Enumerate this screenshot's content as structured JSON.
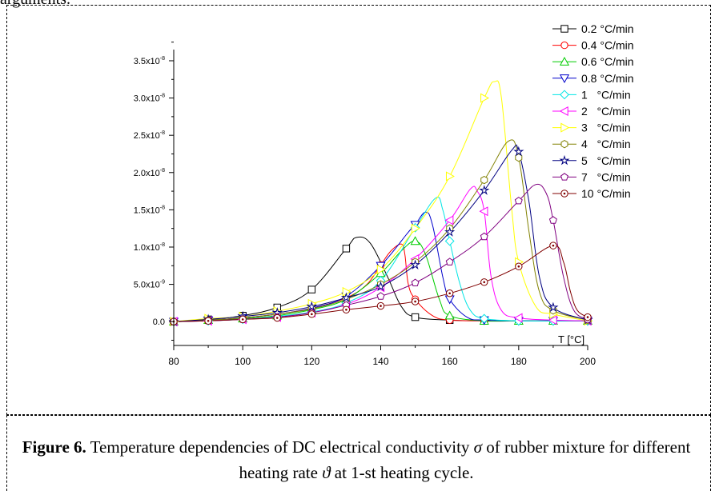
{
  "top_text": "arguments.",
  "caption": {
    "label": "Figure 6.",
    "text1": " Temperature dependencies of DC electrical conductivity ",
    "sym1": "σ",
    "text2": " of rubber mixture for different heating rate ",
    "sym2": "ϑ",
    "text3": " at 1-st heating cycle."
  },
  "chart_data": {
    "type": "line",
    "xlabel": "T [°C]",
    "ylabel": "",
    "xlim": [
      80,
      200
    ],
    "ylim": [
      -3.2e-09,
      3.65e-08
    ],
    "x_ticks": [
      80,
      100,
      120,
      140,
      160,
      180,
      200
    ],
    "y_ticks": [
      {
        "value": 0,
        "label": "0.0",
        "exp": ""
      },
      {
        "value": 5e-09,
        "label": "5.0x10",
        "exp": "-9"
      },
      {
        "value": 1e-08,
        "label": "1.0x10",
        "exp": "-8"
      },
      {
        "value": 1.5e-08,
        "label": "1.5x10",
        "exp": "-8"
      },
      {
        "value": 2e-08,
        "label": "2.0x10",
        "exp": "-8"
      },
      {
        "value": 2.5e-08,
        "label": "2.5x10",
        "exp": "-8"
      },
      {
        "value": 3e-08,
        "label": "3.0x10",
        "exp": "-8"
      },
      {
        "value": 3.5e-08,
        "label": "3.5x10",
        "exp": "-8"
      }
    ],
    "legend_position": "top-right",
    "series": [
      {
        "name": "0.2 °C/min",
        "color": "#000000",
        "marker": "square",
        "x": [
          80,
          90,
          100,
          110,
          120,
          130,
          133,
          137,
          142,
          146,
          150,
          160,
          170,
          180,
          190,
          200
        ],
        "y": [
          0,
          3e-10,
          8e-10,
          1.9e-09,
          4.3e-09,
          9.8e-09,
          1.13e-08,
          1.05e-08,
          6e-09,
          2e-09,
          6e-10,
          2e-10,
          1e-10,
          1e-10,
          1e-10,
          1e-10
        ],
        "mx": [
          80,
          90,
          100,
          110,
          120,
          130,
          150,
          160,
          170,
          180,
          190,
          200
        ],
        "my": [
          0,
          3e-10,
          8e-10,
          1.9e-09,
          4.3e-09,
          9.8e-09,
          6e-10,
          2e-10,
          1e-10,
          1e-10,
          1e-10,
          1e-10
        ]
      },
      {
        "name": "0.4 °C/min",
        "color": "#ff0000",
        "marker": "circle",
        "x": [
          80,
          90,
          100,
          110,
          120,
          130,
          136,
          140,
          143,
          146,
          147,
          148,
          150,
          155,
          160,
          170,
          180,
          190,
          200
        ],
        "y": [
          0,
          2e-10,
          5e-10,
          1e-09,
          1.8e-09,
          3.2e-09,
          5e-09,
          7.6e-09,
          9.5e-09,
          1.04e-08,
          9e-09,
          5e-09,
          3e-09,
          8e-10,
          2e-10,
          1e-10,
          1e-10,
          1e-10,
          1e-10
        ],
        "mx": [
          80,
          90,
          100,
          110,
          120,
          130,
          140,
          150,
          160,
          170,
          180,
          190,
          200
        ],
        "my": [
          0,
          2e-10,
          5e-10,
          1e-09,
          1.8e-09,
          3.2e-09,
          7.6e-09,
          3e-09,
          2e-10,
          1e-10,
          1e-10,
          1e-10,
          1e-10
        ]
      },
      {
        "name": "0.6 °C/min",
        "color": "#00cc00",
        "marker": "triangle-up",
        "x": [
          80,
          90,
          100,
          110,
          120,
          130,
          140,
          146,
          150,
          153,
          157,
          160,
          170,
          180,
          190,
          200
        ],
        "y": [
          0,
          2e-10,
          4e-10,
          8e-10,
          1.6e-09,
          3e-09,
          6.5e-09,
          9.5e-09,
          1.08e-08,
          9e-09,
          3e-09,
          8e-10,
          1e-10,
          1e-10,
          1e-10,
          1e-10
        ],
        "mx": [
          80,
          90,
          100,
          110,
          120,
          130,
          140,
          150,
          160,
          170,
          180,
          190,
          200
        ],
        "my": [
          0,
          2e-10,
          4e-10,
          8e-10,
          1.6e-09,
          3e-09,
          6.5e-09,
          1.08e-08,
          8e-10,
          1e-10,
          1e-10,
          1e-10,
          1e-10
        ]
      },
      {
        "name": "0.8 °C/min",
        "color": "#0000cc",
        "marker": "triangle-down",
        "x": [
          80,
          90,
          100,
          110,
          120,
          130,
          140,
          148,
          150,
          153,
          155,
          158,
          160,
          165,
          170,
          180,
          190,
          200
        ],
        "y": [
          0,
          2e-10,
          5e-10,
          1e-09,
          1.8e-09,
          3.4e-09,
          7.5e-09,
          1.2e-08,
          1.3e-08,
          1.47e-08,
          1.3e-08,
          6e-09,
          3e-09,
          6e-10,
          2e-10,
          1e-10,
          1e-10,
          1e-10
        ],
        "mx": [
          80,
          90,
          100,
          110,
          120,
          130,
          140,
          150,
          160,
          170,
          180,
          190,
          200
        ],
        "my": [
          0,
          2e-10,
          5e-10,
          1e-09,
          1.8e-09,
          3.4e-09,
          7.5e-09,
          1.3e-08,
          3e-09,
          2e-10,
          1e-10,
          1e-10,
          1e-10
        ]
      },
      {
        "name": "1   °C/min",
        "color": "#00e5e5",
        "marker": "diamond",
        "x": [
          80,
          90,
          100,
          110,
          120,
          130,
          140,
          150,
          156,
          158,
          160,
          163,
          166,
          170,
          180,
          190,
          200
        ],
        "y": [
          0,
          1e-10,
          3e-10,
          7e-10,
          1.3e-09,
          2.5e-09,
          5.5e-09,
          1.26e-08,
          1.66e-08,
          1.5e-08,
          1.08e-08,
          5e-09,
          1.5e-09,
          4e-10,
          1e-10,
          1e-10,
          1e-10
        ],
        "mx": [
          80,
          90,
          100,
          110,
          120,
          130,
          140,
          150,
          160,
          170,
          180,
          190,
          200
        ],
        "my": [
          0,
          1e-10,
          3e-10,
          7e-10,
          1.3e-09,
          2.5e-09,
          5.5e-09,
          1.26e-08,
          1.08e-08,
          4e-10,
          1e-10,
          1e-10,
          1e-10
        ]
      },
      {
        "name": "2   °C/min",
        "color": "#ff00ff",
        "marker": "triangle-left",
        "x": [
          80,
          90,
          100,
          110,
          120,
          130,
          140,
          150,
          160,
          166,
          168,
          170,
          172,
          175,
          180,
          190,
          200
        ],
        "y": [
          0,
          1e-10,
          3e-10,
          6e-10,
          1.2e-09,
          2.3e-09,
          4.6e-09,
          8.4e-09,
          1.36e-08,
          1.78e-08,
          1.75e-08,
          1.48e-08,
          6e-09,
          1.5e-09,
          5e-10,
          2e-10,
          1e-10
        ],
        "mx": [
          80,
          90,
          100,
          110,
          120,
          130,
          140,
          150,
          160,
          170,
          180,
          190,
          200
        ],
        "my": [
          0,
          1e-10,
          3e-10,
          6e-10,
          1.2e-09,
          2.3e-09,
          4.6e-09,
          8.4e-09,
          1.36e-08,
          1.48e-08,
          5e-10,
          2e-10,
          1e-10
        ]
      },
      {
        "name": "3   °C/min",
        "color": "#ffff00",
        "marker": "triangle-right",
        "x": [
          80,
          90,
          100,
          110,
          120,
          130,
          140,
          150,
          160,
          170,
          173,
          175,
          178,
          180,
          185,
          190,
          200
        ],
        "y": [
          0,
          4e-10,
          7e-10,
          1.4e-09,
          2.4e-09,
          4e-09,
          7e-09,
          1.25e-08,
          1.95e-08,
          3e-08,
          3.22e-08,
          3e-08,
          1.5e-08,
          8e-09,
          2e-09,
          1e-09,
          1e-10
        ],
        "mx": [
          80,
          90,
          100,
          110,
          120,
          130,
          140,
          150,
          160,
          170,
          180,
          190,
          200
        ],
        "my": [
          0,
          4e-10,
          7e-10,
          1.4e-09,
          2.4e-09,
          4e-09,
          7e-09,
          1.25e-08,
          1.95e-08,
          3e-08,
          8e-09,
          1e-09,
          1e-10
        ]
      },
      {
        "name": "4   °C/min",
        "color": "#808000",
        "marker": "hexagon",
        "x": [
          80,
          90,
          100,
          110,
          120,
          130,
          140,
          150,
          160,
          170,
          177,
          180,
          183,
          186,
          190,
          200
        ],
        "y": [
          0,
          2e-10,
          5e-10,
          1e-09,
          1.7e-09,
          3e-09,
          5e-09,
          8e-09,
          1.25e-08,
          1.9e-08,
          2.42e-08,
          2.2e-08,
          1.2e-08,
          4e-09,
          1.5e-09,
          2e-10
        ],
        "mx": [
          80,
          90,
          100,
          110,
          120,
          130,
          140,
          150,
          160,
          170,
          180,
          190,
          200
        ],
        "my": [
          0,
          2e-10,
          5e-10,
          1e-09,
          1.7e-09,
          3e-09,
          5e-09,
          8e-09,
          1.25e-08,
          1.9e-08,
          2.2e-08,
          1.5e-09,
          2e-10
        ]
      },
      {
        "name": "5   °C/min",
        "color": "#000080",
        "marker": "star",
        "x": [
          80,
          90,
          100,
          110,
          120,
          130,
          140,
          150,
          160,
          170,
          178,
          180,
          183,
          186,
          190,
          200
        ],
        "y": [
          0,
          3e-10,
          7e-10,
          1.2e-09,
          2e-09,
          3.2e-09,
          4.7e-09,
          7.6e-09,
          1.2e-08,
          1.76e-08,
          2.3e-08,
          2.28e-08,
          1.6e-08,
          6e-09,
          1.9e-09,
          2e-10
        ],
        "mx": [
          80,
          90,
          100,
          110,
          120,
          130,
          140,
          150,
          160,
          170,
          180,
          190,
          200
        ],
        "my": [
          0,
          3e-10,
          7e-10,
          1.2e-09,
          2e-09,
          3.2e-09,
          4.7e-09,
          7.6e-09,
          1.2e-08,
          1.76e-08,
          2.28e-08,
          1.9e-09,
          2e-10
        ]
      },
      {
        "name": "7   °C/min",
        "color": "#800080",
        "marker": "pentagon",
        "x": [
          80,
          90,
          100,
          110,
          120,
          130,
          140,
          150,
          160,
          170,
          180,
          185,
          188,
          190,
          193,
          196,
          200
        ],
        "y": [
          0,
          1e-10,
          3e-10,
          6e-10,
          1.2e-09,
          2.2e-09,
          3.4e-09,
          5.2e-09,
          8e-09,
          1.14e-08,
          1.62e-08,
          1.84e-08,
          1.72e-08,
          1.36e-08,
          6e-09,
          1.5e-09,
          3e-10
        ],
        "mx": [
          80,
          90,
          100,
          110,
          120,
          130,
          140,
          150,
          160,
          170,
          180,
          190,
          200
        ],
        "my": [
          0,
          1e-10,
          3e-10,
          6e-10,
          1.2e-09,
          2.2e-09,
          3.4e-09,
          5.2e-09,
          8e-09,
          1.14e-08,
          1.62e-08,
          1.36e-08,
          3e-10
        ]
      },
      {
        "name": "10 °C/min",
        "color": "#800000",
        "marker": "circle-dot",
        "x": [
          80,
          90,
          100,
          110,
          120,
          130,
          140,
          150,
          160,
          170,
          180,
          190,
          193,
          195,
          197,
          200
        ],
        "y": [
          0,
          1e-10,
          3e-10,
          5e-10,
          1e-09,
          1.6e-09,
          2.1e-09,
          2.7e-09,
          3.8e-09,
          5.3e-09,
          7.4e-09,
          1.02e-08,
          8e-09,
          4e-09,
          1.5e-09,
          6e-10
        ],
        "mx": [
          80,
          90,
          100,
          110,
          120,
          130,
          140,
          150,
          160,
          170,
          180,
          190,
          200
        ],
        "my": [
          0,
          1e-10,
          3e-10,
          5e-10,
          1e-09,
          1.6e-09,
          2.1e-09,
          2.7e-09,
          3.8e-09,
          5.3e-09,
          7.4e-09,
          1.02e-08,
          6e-10
        ]
      }
    ]
  }
}
